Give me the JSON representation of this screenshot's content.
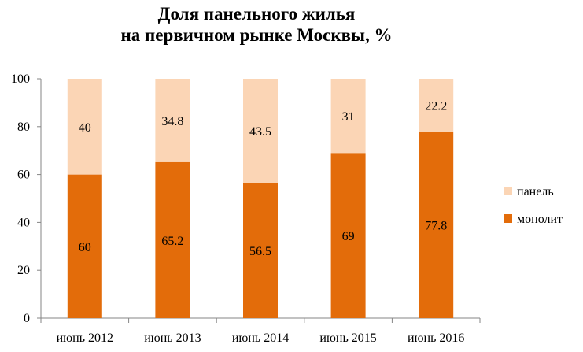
{
  "chart_data": {
    "type": "bar",
    "stacked": true,
    "title_line1": "Доля панельного жилья",
    "title_line2": "на первичном рынке Москвы, %",
    "categories": [
      "июнь 2012",
      "июнь 2013",
      "июнь 2014",
      "июнь 2015",
      "июнь 2016"
    ],
    "series": [
      {
        "name": "монолит",
        "values": [
          60,
          65.2,
          56.5,
          69,
          77.8
        ],
        "color": "#E36C0A"
      },
      {
        "name": "панель",
        "values": [
          40,
          34.8,
          43.5,
          31,
          22.2
        ],
        "color": "#FBD5B5"
      }
    ],
    "ylim": [
      0,
      100
    ],
    "yticks": [
      "0",
      "20",
      "40",
      "60",
      "80",
      "100"
    ],
    "grid": false,
    "legend_position": "right",
    "legend_order": [
      "панель",
      "монолит"
    ]
  }
}
